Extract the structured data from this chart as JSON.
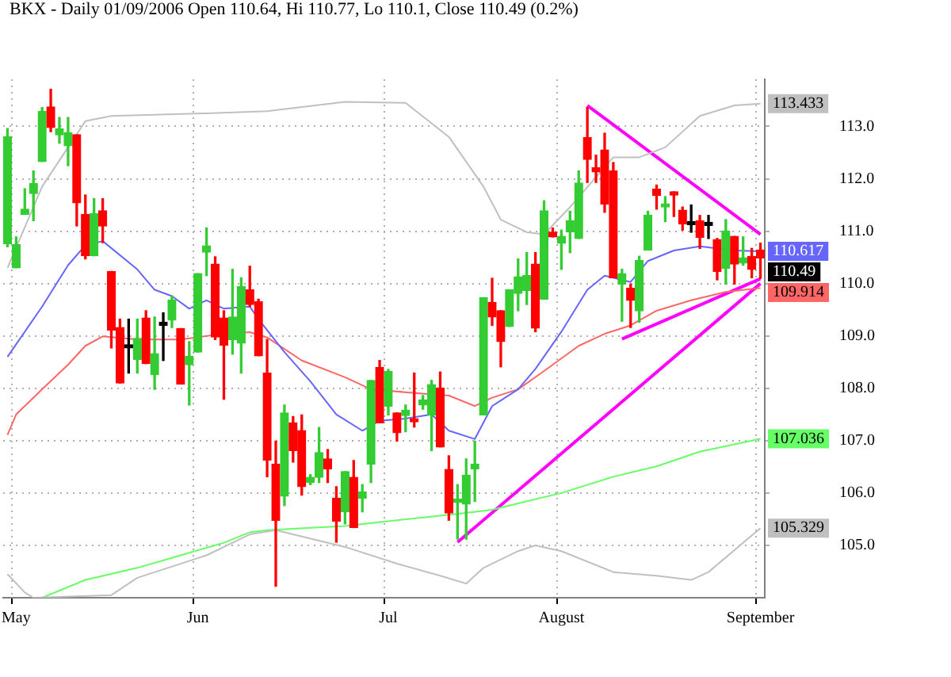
{
  "chart_data": {
    "type": "candlestick",
    "title": "BKX - Daily 01/09/2006 Open 110.64, Hi 110.77, Lo 110.1, Close 110.49 (0.2%)",
    "categories": [
      null,
      "May",
      null,
      null,
      null,
      null,
      null,
      null,
      null,
      null,
      null,
      null,
      null,
      null,
      null,
      null,
      null,
      null,
      null,
      null,
      null,
      null,
      "Jun",
      null,
      null,
      null,
      null,
      null,
      null,
      null,
      null,
      null,
      null,
      null,
      null,
      null,
      null,
      null,
      null,
      null,
      null,
      null,
      null,
      null,
      "Jul",
      null,
      null,
      null,
      null,
      null,
      null,
      null,
      null,
      null,
      null,
      null,
      null,
      null,
      null,
      null,
      null,
      null,
      null,
      null,
      "August",
      null,
      null,
      null,
      null,
      null,
      null,
      null,
      null,
      null,
      null,
      null,
      null,
      null,
      null,
      null,
      null,
      null,
      null,
      null,
      null,
      null,
      null,
      "September"
    ],
    "ohlc": [
      [
        110.76,
        112.96,
        110.7,
        112.8
      ],
      [
        110.3,
        110.89,
        110.3,
        110.74
      ],
      [
        111.32,
        111.81,
        111.32,
        111.42
      ],
      [
        111.72,
        112.15,
        111.2,
        111.91
      ],
      [
        112.33,
        113.36,
        112.33,
        113.29
      ],
      [
        113.37,
        113.71,
        112.9,
        112.98
      ],
      [
        112.84,
        113.17,
        112.68,
        112.95
      ],
      [
        112.63,
        113.17,
        112.25,
        112.88
      ],
      [
        112.84,
        112.84,
        111.1,
        111.54
      ],
      [
        111.32,
        111.69,
        110.47,
        110.53
      ],
      [
        110.53,
        111.62,
        110.53,
        111.33
      ],
      [
        111.39,
        111.62,
        110.78,
        111.1
      ],
      [
        110.23,
        110.23,
        108.77,
        109.11
      ],
      [
        109.16,
        109.32,
        108.1,
        108.1
      ],
      [
        108.77,
        109.32,
        108.29,
        108.77
      ],
      [
        108.55,
        109.32,
        108.29,
        108.95
      ],
      [
        109.34,
        109.48,
        108.47,
        108.47
      ],
      [
        108.26,
        109.36,
        107.98,
        108.66
      ],
      [
        109.2,
        109.44,
        108.53,
        109.2
      ],
      [
        109.3,
        109.76,
        109.16,
        109.68
      ],
      [
        109.14,
        109.14,
        108.08,
        108.08
      ],
      [
        108.45,
        108.89,
        107.68,
        108.61
      ],
      [
        108.69,
        110.19,
        108.69,
        110.19
      ],
      [
        110.6,
        111.06,
        110.15,
        110.72
      ],
      [
        110.37,
        110.51,
        108.93,
        108.98
      ],
      [
        109.34,
        109.48,
        107.79,
        108.82
      ],
      [
        108.93,
        110.27,
        108.65,
        109.36
      ],
      [
        108.86,
        110.11,
        108.29,
        109.94
      ],
      [
        109.88,
        110.33,
        109.56,
        109.6
      ],
      [
        109.65,
        109.7,
        108.62,
        108.62
      ],
      [
        108.29,
        108.93,
        106.31,
        106.63
      ],
      [
        106.55,
        106.99,
        104.22,
        105.48
      ],
      [
        105.94,
        107.68,
        105.76,
        107.53
      ],
      [
        107.34,
        107.46,
        106.59,
        106.81
      ],
      [
        107.19,
        107.49,
        105.96,
        106.12
      ],
      [
        106.2,
        106.35,
        106.16,
        106.3
      ],
      [
        106.3,
        107.25,
        106.2,
        106.77
      ],
      [
        106.65,
        106.83,
        106.2,
        106.46
      ],
      [
        105.9,
        106.12,
        105.06,
        105.46
      ],
      [
        105.64,
        106.41,
        105.41,
        106.41
      ],
      [
        106.3,
        106.62,
        105.34,
        105.34
      ],
      [
        105.9,
        106.16,
        105.64,
        106.02
      ],
      [
        106.55,
        108.15,
        106.2,
        108.15
      ],
      [
        108.4,
        108.53,
        107.34,
        107.34
      ],
      [
        107.66,
        108.36,
        107.49,
        108.32
      ],
      [
        107.53,
        107.53,
        106.99,
        107.15
      ],
      [
        107.48,
        107.68,
        107.17,
        107.58
      ],
      [
        107.42,
        108.29,
        107.26,
        107.36
      ],
      [
        107.68,
        107.86,
        107.6,
        107.78
      ],
      [
        107.49,
        108.15,
        106.81,
        108.07
      ],
      [
        108.0,
        108.31,
        106.88,
        106.88
      ],
      [
        106.45,
        106.71,
        105.48,
        105.62
      ],
      [
        105.82,
        106.16,
        105.12,
        105.88
      ],
      [
        105.79,
        106.65,
        105.12,
        106.34
      ],
      [
        106.46,
        106.99,
        105.84,
        106.55
      ],
      [
        107.49,
        109.73,
        107.49,
        109.73
      ],
      [
        109.64,
        110.1,
        109.2,
        109.36
      ],
      [
        109.48,
        109.48,
        108.41,
        108.89
      ],
      [
        109.18,
        109.88,
        109.18,
        109.88
      ],
      [
        109.81,
        110.47,
        109.48,
        110.13
      ],
      [
        109.87,
        110.59,
        109.6,
        110.15
      ],
      [
        110.37,
        110.59,
        109.08,
        109.15
      ],
      [
        109.7,
        111.58,
        109.7,
        111.39
      ],
      [
        110.98,
        111.06,
        110.89,
        110.89
      ],
      [
        110.77,
        111.02,
        110.27,
        110.9
      ],
      [
        110.99,
        111.38,
        110.59,
        111.2
      ],
      [
        110.86,
        112.15,
        110.86,
        111.92
      ],
      [
        112.79,
        113.36,
        111.93,
        112.37
      ],
      [
        112.21,
        112.45,
        111.93,
        112.13
      ],
      [
        112.55,
        112.87,
        111.36,
        111.52
      ],
      [
        112.15,
        112.31,
        110.11,
        110.11
      ],
      [
        109.99,
        110.27,
        109.28,
        110.19
      ],
      [
        109.91,
        109.99,
        109.16,
        109.68
      ],
      [
        109.48,
        110.52,
        109.26,
        110.44
      ],
      [
        110.64,
        111.38,
        110.64,
        111.3
      ],
      [
        111.8,
        111.88,
        111.42,
        111.68
      ],
      [
        111.46,
        111.66,
        111.18,
        111.52
      ],
      [
        111.72,
        111.75,
        111.28,
        111.69
      ],
      [
        111.4,
        111.46,
        111.02,
        111.14
      ],
      [
        111.12,
        111.5,
        110.98,
        111.12
      ],
      [
        111.2,
        111.3,
        110.67,
        110.88
      ],
      [
        111.11,
        111.3,
        110.86,
        111.11
      ],
      [
        110.84,
        110.86,
        110.07,
        110.23
      ],
      [
        110.29,
        111.22,
        109.99,
        111.0
      ],
      [
        110.9,
        110.9,
        109.99,
        110.37
      ],
      [
        110.39,
        110.89,
        110.35,
        110.49
      ],
      [
        110.52,
        110.67,
        110.11,
        110.27
      ],
      [
        110.64,
        110.77,
        110.1,
        110.49
      ]
    ],
    "colors": [
      "#33cc33",
      "#33cc33",
      "#33cc33",
      "#33cc33",
      "#33cc33",
      "#ff0000",
      "#33cc33",
      "#33cc33",
      "#ff0000",
      "#ff0000",
      "#33cc33",
      "#ff0000",
      "#ff0000",
      "#ff0000",
      "#000000",
      "#33cc33",
      "#ff0000",
      "#33cc33",
      "#000000",
      "#33cc33",
      "#ff0000",
      "#33cc33",
      "#33cc33",
      "#33cc33",
      "#ff0000",
      "#ff0000",
      "#33cc33",
      "#33cc33",
      "#ff0000",
      "#ff0000",
      "#ff0000",
      "#ff0000",
      "#33cc33",
      "#ff0000",
      "#ff0000",
      "#33cc33",
      "#33cc33",
      "#ff0000",
      "#ff0000",
      "#33cc33",
      "#ff0000",
      "#33cc33",
      "#33cc33",
      "#ff0000",
      "#33cc33",
      "#ff0000",
      "#33cc33",
      "#ff0000",
      "#33cc33",
      "#33cc33",
      "#ff0000",
      "#ff0000",
      "#33cc33",
      "#33cc33",
      "#33cc33",
      "#33cc33",
      "#ff0000",
      "#ff0000",
      "#33cc33",
      "#33cc33",
      "#33cc33",
      "#ff0000",
      "#33cc33",
      "#ff0000",
      "#33cc33",
      "#33cc33",
      "#33cc33",
      "#ff0000",
      "#ff0000",
      "#ff0000",
      "#ff0000",
      "#33cc33",
      "#ff0000",
      "#33cc33",
      "#33cc33",
      "#ff0000",
      "#33cc33",
      "#ff0000",
      "#ff0000",
      "#000000",
      "#ff0000",
      "#000000",
      "#ff0000",
      "#33cc33",
      "#ff0000",
      "#33cc33",
      "#ff0000",
      "#ff0000"
    ],
    "series": [
      {
        "type": "line",
        "color": "#c0c0c0",
        "values": [
          110.3,
          null,
          null,
          null,
          111.85,
          null,
          null,
          112.6,
          null,
          113.1,
          null,
          null,
          113.2,
          null,
          null,
          null,
          null,
          null,
          null,
          null,
          null,
          null,
          null,
          113.25,
          null,
          null,
          null,
          null,
          null,
          null,
          113.29,
          null,
          null,
          null,
          null,
          null,
          null,
          null,
          null,
          113.47,
          null,
          null,
          null,
          null,
          null,
          null,
          113.45,
          null,
          null,
          null,
          null,
          112.8,
          null,
          null,
          null,
          111.85,
          null,
          111.22,
          null,
          null,
          110.98,
          null,
          110.94,
          null,
          null,
          111.46,
          null,
          null,
          null,
          null,
          112.41,
          null,
          null,
          112.41,
          null,
          null,
          112.6,
          null,
          null,
          null,
          113.2,
          null,
          null,
          null,
          113.4,
          null,
          null,
          113.433
        ],
        "value_labels": [
          null,
          null,
          null,
          null,
          null,
          null,
          null,
          null,
          null,
          null,
          null,
          null,
          null,
          null,
          null,
          null,
          null,
          null,
          null,
          null,
          null,
          null,
          null,
          null,
          null,
          null,
          null,
          null,
          null,
          null,
          null,
          null,
          null,
          null,
          null,
          null,
          null,
          null,
          null,
          null,
          null,
          null,
          null,
          null,
          null,
          null,
          null,
          null,
          null,
          null,
          null,
          null,
          null,
          null,
          null,
          null,
          null,
          null,
          null,
          null,
          null,
          null,
          null,
          null,
          null,
          null,
          null,
          null,
          null,
          null,
          null,
          null,
          null,
          null,
          null,
          null,
          null,
          null,
          null,
          null,
          null,
          null,
          null,
          null,
          null,
          null,
          null,
          "113.433"
        ]
      },
      {
        "type": "line",
        "color": "#c0c0c0",
        "values": [
          104.45,
          null,
          104.1,
          104.0,
          null,
          null,
          null,
          null,
          null,
          null,
          null,
          null,
          104.05,
          null,
          null,
          104.38,
          null,
          null,
          null,
          null,
          null,
          null,
          null,
          104.81,
          null,
          null,
          null,
          null,
          105.21,
          null,
          null,
          105.29,
          null,
          null,
          null,
          null,
          null,
          null,
          null,
          104.97,
          null,
          null,
          null,
          null,
          null,
          104.65,
          null,
          null,
          null,
          null,
          104.42,
          null,
          null,
          104.27,
          null,
          104.57,
          null,
          null,
          null,
          104.89,
          null,
          105.0,
          null,
          null,
          104.89,
          null,
          null,
          null,
          null,
          null,
          104.49,
          null,
          null,
          null,
          null,
          104.42,
          null,
          null,
          null,
          104.34,
          null,
          104.49,
          null,
          null,
          null,
          null,
          null,
          105.329
        ],
        "value_labels": [
          null,
          null,
          null,
          null,
          null,
          null,
          null,
          null,
          null,
          null,
          null,
          null,
          null,
          null,
          null,
          null,
          null,
          null,
          null,
          null,
          null,
          null,
          null,
          null,
          null,
          null,
          null,
          null,
          null,
          null,
          null,
          null,
          null,
          null,
          null,
          null,
          null,
          null,
          null,
          null,
          null,
          null,
          null,
          null,
          null,
          null,
          null,
          null,
          null,
          null,
          null,
          null,
          null,
          null,
          null,
          null,
          null,
          null,
          null,
          null,
          null,
          null,
          null,
          null,
          null,
          null,
          null,
          null,
          null,
          null,
          null,
          null,
          null,
          null,
          null,
          null,
          null,
          null,
          null,
          null,
          null,
          null,
          null,
          null,
          null,
          null,
          null,
          "105.329"
        ]
      },
      {
        "type": "line",
        "color": "#6666ff",
        "values": [
          108.6,
          null,
          null,
          null,
          109.56,
          null,
          null,
          110.35,
          null,
          110.73,
          null,
          110.81,
          null,
          null,
          null,
          110.27,
          null,
          109.88,
          null,
          109.76,
          null,
          109.52,
          null,
          109.68,
          null,
          109.52,
          null,
          null,
          109.56,
          109.32,
          null,
          null,
          108.69,
          null,
          null,
          108.13,
          null,
          null,
          107.5,
          null,
          null,
          107.19,
          null,
          107.38,
          null,
          null,
          107.42,
          null,
          null,
          107.5,
          null,
          107.19,
          null,
          null,
          107.03,
          null,
          107.66,
          null,
          null,
          107.98,
          null,
          108.37,
          null,
          null,
          109.08,
          null,
          null,
          109.88,
          null,
          110.15,
          null,
          null,
          110.03,
          null,
          110.43,
          null,
          null,
          110.63,
          null,
          null,
          110.71,
          null,
          null,
          null,
          110.63,
          null,
          null,
          110.617
        ],
        "value_labels": [
          null,
          null,
          null,
          null,
          null,
          null,
          null,
          null,
          null,
          null,
          null,
          null,
          null,
          null,
          null,
          null,
          null,
          null,
          null,
          null,
          null,
          null,
          null,
          null,
          null,
          null,
          null,
          null,
          null,
          null,
          null,
          null,
          null,
          null,
          null,
          null,
          null,
          null,
          null,
          null,
          null,
          null,
          null,
          null,
          null,
          null,
          null,
          null,
          null,
          null,
          null,
          null,
          null,
          null,
          null,
          null,
          null,
          null,
          null,
          null,
          null,
          null,
          null,
          null,
          null,
          null,
          null,
          null,
          null,
          null,
          null,
          null,
          null,
          null,
          null,
          null,
          null,
          null,
          null,
          null,
          null,
          null,
          null,
          null,
          null,
          null,
          null,
          "110.617"
        ]
      },
      {
        "type": "line",
        "color": "#ff6666",
        "values": [
          107.11,
          107.5,
          null,
          null,
          107.98,
          null,
          null,
          108.45,
          null,
          108.81,
          null,
          108.99,
          null,
          null,
          null,
          108.93,
          null,
          null,
          null,
          null,
          108.93,
          null,
          null,
          null,
          109.02,
          null,
          null,
          null,
          109.07,
          null,
          108.97,
          null,
          null,
          null,
          108.53,
          null,
          null,
          null,
          null,
          108.21,
          null,
          null,
          107.98,
          null,
          null,
          null,
          null,
          107.91,
          null,
          null,
          null,
          107.86,
          null,
          null,
          107.66,
          null,
          107.82,
          null,
          null,
          107.98,
          null,
          null,
          108.33,
          null,
          null,
          null,
          108.81,
          null,
          null,
          109.04,
          null,
          null,
          109.2,
          null,
          null,
          109.48,
          null,
          null,
          null,
          109.68,
          null,
          null,
          null,
          109.84,
          null,
          null,
          null,
          109.914
        ],
        "value_labels": [
          null,
          null,
          null,
          null,
          null,
          null,
          null,
          null,
          null,
          null,
          null,
          null,
          null,
          null,
          null,
          null,
          null,
          null,
          null,
          null,
          null,
          null,
          null,
          null,
          null,
          null,
          null,
          null,
          null,
          null,
          null,
          null,
          null,
          null,
          null,
          null,
          null,
          null,
          null,
          null,
          null,
          null,
          null,
          null,
          null,
          null,
          null,
          null,
          null,
          null,
          null,
          null,
          null,
          null,
          null,
          null,
          null,
          null,
          null,
          null,
          null,
          null,
          null,
          null,
          null,
          null,
          null,
          null,
          null,
          null,
          null,
          null,
          null,
          null,
          null,
          null,
          null,
          null,
          null,
          null,
          null,
          null,
          null,
          null,
          null,
          null,
          null,
          "109.914"
        ]
      },
      {
        "type": "line",
        "color": "#66ff66",
        "values": [
          null,
          null,
          null,
          null,
          104.0,
          null,
          null,
          null,
          null,
          104.34,
          null,
          null,
          null,
          null,
          null,
          104.57,
          null,
          null,
          null,
          null,
          104.81,
          null,
          null,
          null,
          null,
          105.05,
          null,
          null,
          105.25,
          null,
          105.29,
          null,
          null,
          null,
          null,
          null,
          null,
          null,
          null,
          105.37,
          null,
          null,
          null,
          null,
          null,
          105.48,
          null,
          null,
          null,
          null,
          null,
          null,
          105.6,
          null,
          null,
          null,
          105.68,
          null,
          null,
          105.8,
          null,
          null,
          null,
          null,
          106.0,
          null,
          null,
          null,
          null,
          null,
          106.31,
          null,
          null,
          null,
          null,
          106.51,
          null,
          null,
          null,
          null,
          106.79,
          null,
          null,
          null,
          null,
          null,
          null,
          107.036
        ],
        "value_labels": [
          null,
          null,
          null,
          null,
          null,
          null,
          null,
          null,
          null,
          null,
          null,
          null,
          null,
          null,
          null,
          null,
          null,
          null,
          null,
          null,
          null,
          null,
          null,
          null,
          null,
          null,
          null,
          null,
          null,
          null,
          null,
          null,
          null,
          null,
          null,
          null,
          null,
          null,
          null,
          null,
          null,
          null,
          null,
          null,
          null,
          null,
          null,
          null,
          null,
          null,
          null,
          null,
          null,
          null,
          null,
          null,
          null,
          null,
          null,
          null,
          null,
          null,
          null,
          null,
          null,
          null,
          null,
          null,
          null,
          null,
          null,
          null,
          null,
          null,
          null,
          null,
          null,
          null,
          null,
          null,
          null,
          null,
          null,
          null,
          null,
          null,
          null,
          "107.036"
        ]
      },
      {
        "type": "line",
        "color": "#ff00ff",
        "values": [
          null,
          null,
          null,
          null,
          null,
          null,
          null,
          null,
          null,
          null,
          null,
          null,
          null,
          null,
          null,
          null,
          null,
          null,
          null,
          null,
          null,
          null,
          null,
          null,
          null,
          null,
          null,
          null,
          null,
          null,
          null,
          null,
          null,
          null,
          null,
          null,
          null,
          null,
          null,
          null,
          null,
          null,
          null,
          null,
          null,
          null,
          null,
          null,
          null,
          null,
          null,
          null,
          null,
          null,
          null,
          null,
          null,
          null,
          null,
          null,
          null,
          null,
          null,
          null,
          null,
          null,
          null,
          113.4,
          null,
          null,
          null,
          null,
          null,
          null,
          null,
          null,
          null,
          null,
          null,
          null,
          null,
          null,
          null,
          null,
          null,
          null,
          null,
          110.94
        ]
      },
      {
        "type": "line",
        "color": "#ff00ff",
        "values": [
          null,
          null,
          null,
          null,
          null,
          null,
          null,
          null,
          null,
          null,
          null,
          null,
          null,
          null,
          null,
          null,
          null,
          null,
          null,
          null,
          null,
          null,
          null,
          null,
          null,
          null,
          null,
          null,
          null,
          null,
          null,
          null,
          null,
          null,
          null,
          null,
          null,
          null,
          null,
          null,
          null,
          null,
          null,
          null,
          null,
          null,
          null,
          null,
          null,
          null,
          null,
          null,
          105.06,
          null,
          null,
          null,
          null,
          null,
          null,
          null,
          null,
          null,
          null,
          null,
          null,
          null,
          null,
          null,
          null,
          null,
          null,
          null,
          null,
          null,
          null,
          null,
          null,
          null,
          null,
          null,
          null,
          null,
          null,
          null,
          null,
          null,
          null,
          110.0
        ]
      },
      {
        "type": "line",
        "color": "#ff00ff",
        "values": [
          null,
          null,
          null,
          null,
          null,
          null,
          null,
          null,
          null,
          null,
          null,
          null,
          null,
          null,
          null,
          null,
          null,
          null,
          null,
          null,
          null,
          null,
          null,
          null,
          null,
          null,
          null,
          null,
          null,
          null,
          null,
          null,
          null,
          null,
          null,
          null,
          null,
          null,
          null,
          null,
          null,
          null,
          null,
          null,
          null,
          null,
          null,
          null,
          null,
          null,
          null,
          null,
          null,
          null,
          null,
          null,
          null,
          null,
          null,
          null,
          null,
          null,
          null,
          null,
          null,
          null,
          null,
          null,
          null,
          null,
          null,
          108.94,
          null,
          null,
          null,
          null,
          null,
          null,
          null,
          null,
          null,
          null,
          null,
          null,
          null,
          null,
          null,
          110.09
        ]
      }
    ],
    "ylim": [
      104,
      113.9
    ],
    "yticks": [
      {
        "value": 105,
        "label": "105.0"
      },
      {
        "value": 106,
        "label": "106.0"
      },
      {
        "value": 107,
        "label": "107.0"
      },
      {
        "value": 108,
        "label": "108.0"
      },
      {
        "value": 109,
        "label": "109.0"
      },
      {
        "value": 110,
        "label": "110.0"
      },
      {
        "value": 111,
        "label": "111.0"
      },
      {
        "value": 112,
        "label": "112.0"
      },
      {
        "value": 113,
        "label": "113.0"
      }
    ],
    "grid": true,
    "legend": false,
    "value_labels": [
      null,
      null,
      null,
      null,
      null,
      null,
      null,
      null,
      null,
      null,
      null,
      null,
      null,
      null,
      null,
      null,
      null,
      null,
      null,
      null,
      null,
      null,
      null,
      null,
      null,
      null,
      null,
      null,
      null,
      null,
      null,
      null,
      null,
      null,
      null,
      null,
      null,
      null,
      null,
      null,
      null,
      null,
      null,
      null,
      null,
      null,
      null,
      null,
      null,
      null,
      null,
      null,
      null,
      null,
      null,
      null,
      null,
      null,
      null,
      null,
      null,
      null,
      null,
      null,
      null,
      null,
      null,
      null,
      null,
      null,
      null,
      null,
      null,
      null,
      null,
      null,
      null,
      null,
      null,
      null,
      null,
      null,
      null,
      null,
      null,
      null,
      null,
      "110.49"
    ]
  }
}
